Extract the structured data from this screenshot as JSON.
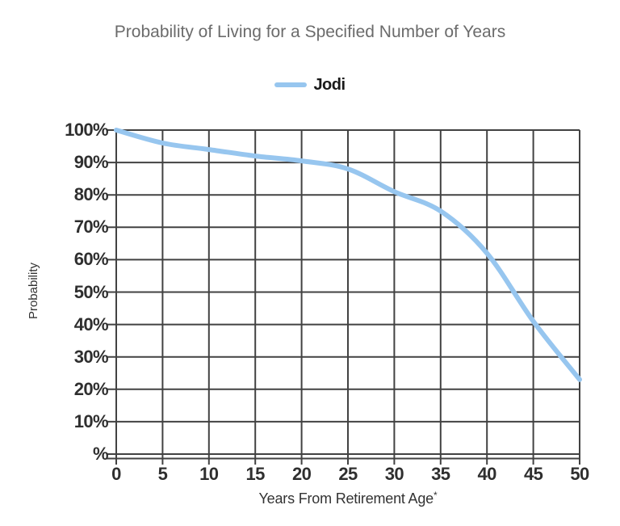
{
  "page": {
    "background": "#ffffff"
  },
  "chart_data": {
    "type": "line",
    "title": "Probability of Living for a Specified Number of Years",
    "xlabel": "Years From Retirement Age",
    "xlabel_suffix": "*",
    "ylabel": "Probability",
    "x": [
      0,
      5,
      10,
      15,
      20,
      25,
      30,
      35,
      40,
      45,
      50
    ],
    "series": [
      {
        "name": "Jodi",
        "color": "#97c6ef",
        "values": [
          100,
          96,
          94,
          92,
          90.5,
          88,
          81,
          75,
          62,
          41,
          23
        ]
      }
    ],
    "xlim": [
      0,
      50
    ],
    "ylim": [
      0,
      100
    ],
    "x_tick_labels": [
      "0",
      "5",
      "10",
      "15",
      "20",
      "25",
      "30",
      "35",
      "40",
      "45",
      "50"
    ],
    "y_tick_labels": [
      "100%",
      "90%",
      "80%",
      "70%",
      "60%",
      "50%",
      "40%",
      "30%",
      "20%",
      "10%",
      "%"
    ],
    "grid": true,
    "legend_position": "top-center"
  },
  "colors": {
    "line": "#97c6ef",
    "grid": "#424242",
    "tick_text": "#2f2f2f",
    "axis_text": "#333333",
    "title_text": "#6b6b6b",
    "legend_text": "#1a1a1a"
  }
}
